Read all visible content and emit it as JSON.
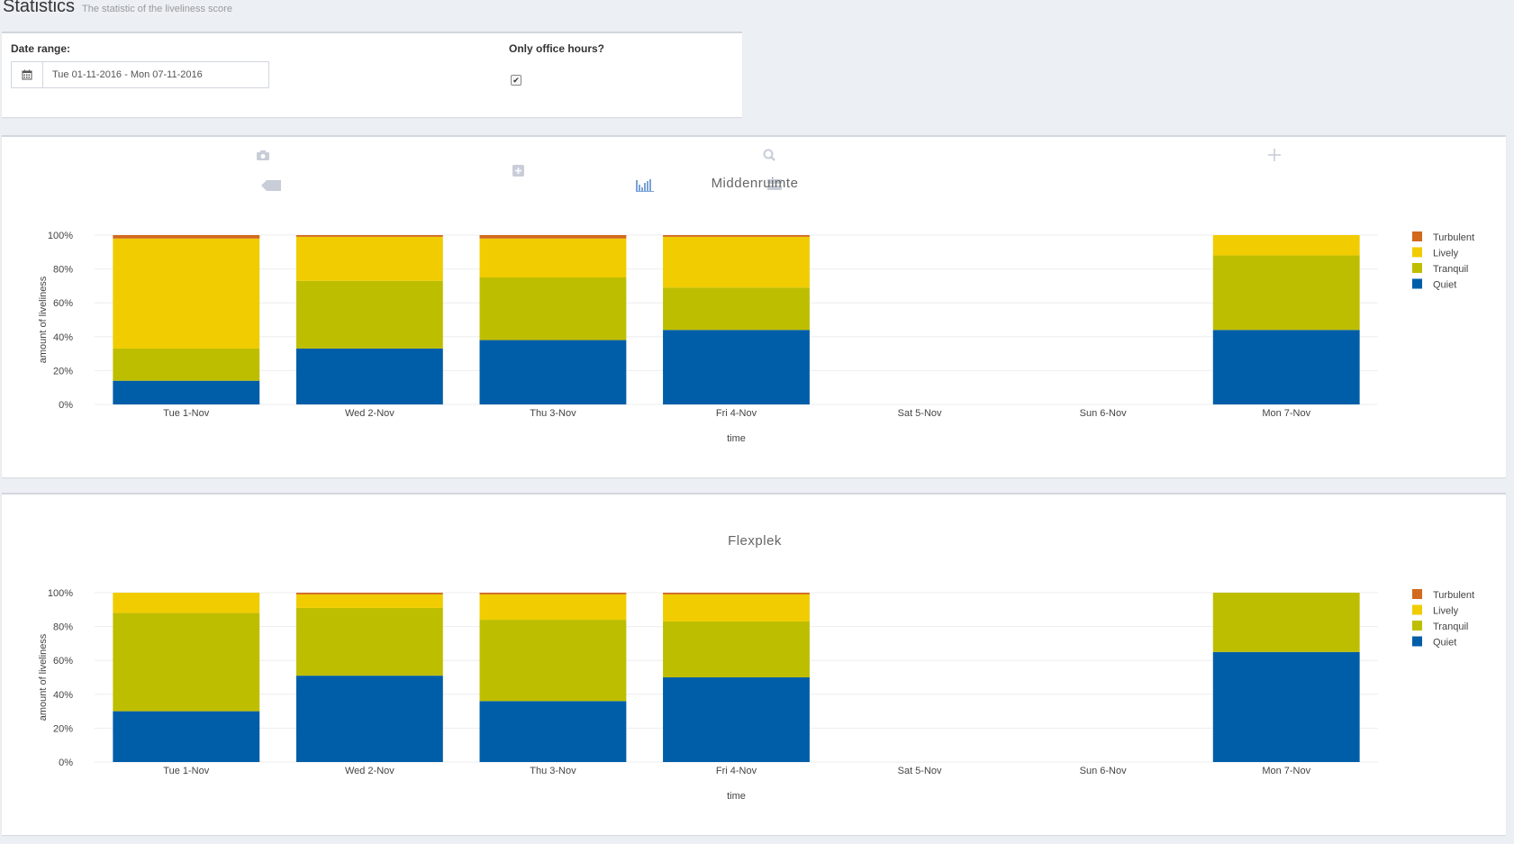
{
  "header": {
    "title": "Statistics",
    "subtitle": "The statistic of the liveliness score"
  },
  "filters": {
    "date_range_label": "Date range:",
    "date_range_value": "Tue 01-11-2016 - Mon 07-11-2016",
    "office_hours_label": "Only office hours?",
    "office_hours_checked": true,
    "office_hours_mark": "✔"
  },
  "modebar": [
    "camera-icon",
    "zoom-icon",
    "pan-icon",
    "zoom-in-icon",
    "autoscale-icon",
    "compare-data-icon",
    "show-closest-icon"
  ],
  "colors": {
    "Turbulent": "#d2691e",
    "Lively": "#f0cc00",
    "Tranquil": "#bebe00",
    "Quiet": "#005ea8"
  },
  "chart_data": [
    {
      "type": "bar",
      "stacked": true,
      "title": "Middenruimte",
      "xlabel": "time",
      "ylabel": "amount of liveliness",
      "ylim": [
        0,
        100
      ],
      "yticks": [
        "0%",
        "20%",
        "40%",
        "60%",
        "80%",
        "100%"
      ],
      "categories": [
        "Tue 1-Nov",
        "Wed 2-Nov",
        "Thu 3-Nov",
        "Fri 4-Nov",
        "Sat 5-Nov",
        "Sun 6-Nov",
        "Mon 7-Nov"
      ],
      "legend": [
        "Turbulent",
        "Lively",
        "Tranquil",
        "Quiet"
      ],
      "legend_position": "right",
      "series": [
        {
          "name": "Quiet",
          "values": [
            14,
            33,
            38,
            44,
            0,
            0,
            44
          ]
        },
        {
          "name": "Tranquil",
          "values": [
            19,
            40,
            37,
            25,
            0,
            0,
            44
          ]
        },
        {
          "name": "Lively",
          "values": [
            65,
            26,
            23,
            30,
            0,
            0,
            12
          ]
        },
        {
          "name": "Turbulent",
          "values": [
            2,
            1,
            2,
            1,
            0,
            0,
            0
          ]
        }
      ]
    },
    {
      "type": "bar",
      "stacked": true,
      "title": "Flexplek",
      "xlabel": "time",
      "ylabel": "amount of liveliness",
      "ylim": [
        0,
        100
      ],
      "yticks": [
        "0%",
        "20%",
        "40%",
        "60%",
        "80%",
        "100%"
      ],
      "categories": [
        "Tue 1-Nov",
        "Wed 2-Nov",
        "Thu 3-Nov",
        "Fri 4-Nov",
        "Sat 5-Nov",
        "Sun 6-Nov",
        "Mon 7-Nov"
      ],
      "legend": [
        "Turbulent",
        "Lively",
        "Tranquil",
        "Quiet"
      ],
      "legend_position": "right",
      "series": [
        {
          "name": "Quiet",
          "values": [
            30,
            51,
            36,
            50,
            0,
            0,
            65
          ]
        },
        {
          "name": "Tranquil",
          "values": [
            58,
            40,
            48,
            33,
            0,
            0,
            35
          ]
        },
        {
          "name": "Lively",
          "values": [
            12,
            8,
            15,
            16,
            0,
            0,
            0
          ]
        },
        {
          "name": "Turbulent",
          "values": [
            0,
            1,
            1,
            1,
            0,
            0,
            0
          ]
        }
      ]
    }
  ]
}
